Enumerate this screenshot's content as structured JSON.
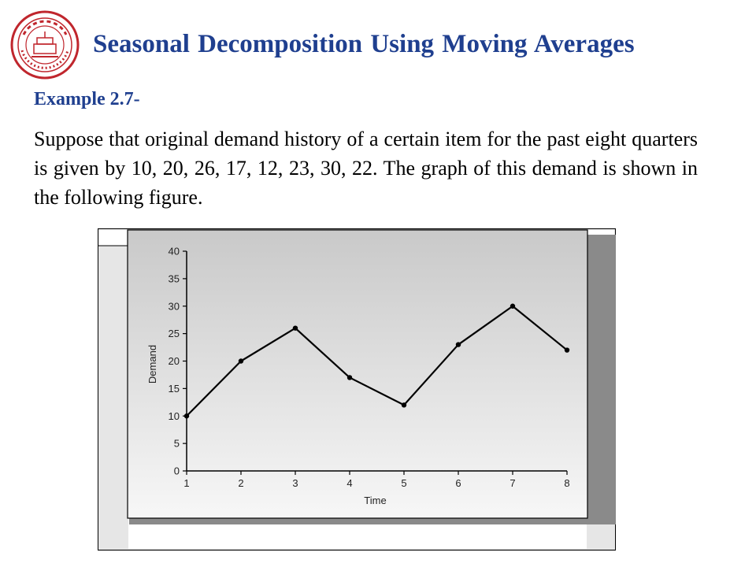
{
  "header": {
    "title": "Seasonal Decomposition Using Moving Averages"
  },
  "content": {
    "example_label": "Example 2.7-",
    "paragraph": "Suppose that original demand history of a certain item for the past eight quarters is given by 10, 20, 26, 17, 12, 23, 30, 22. The graph of this demand is shown in the following figure."
  },
  "logo": {
    "icon": "university-seal-icon",
    "text": "SHANGHAI JIAO TONG UNIVERSITY",
    "color": "#c0262d"
  },
  "chart_data": {
    "type": "line",
    "title": "",
    "xlabel": "Time",
    "ylabel": "Demand",
    "x": [
      1,
      2,
      3,
      4,
      5,
      6,
      7,
      8
    ],
    "values": [
      10,
      20,
      26,
      17,
      12,
      23,
      30,
      22
    ],
    "xlim": [
      1,
      8
    ],
    "ylim": [
      0,
      40
    ],
    "yticks": [
      0,
      5,
      10,
      15,
      20,
      25,
      30,
      35,
      40
    ],
    "xticks": [
      1,
      2,
      3,
      4,
      5,
      6,
      7,
      8
    ],
    "grid": false,
    "legend": "none",
    "line_color": "#000000"
  }
}
